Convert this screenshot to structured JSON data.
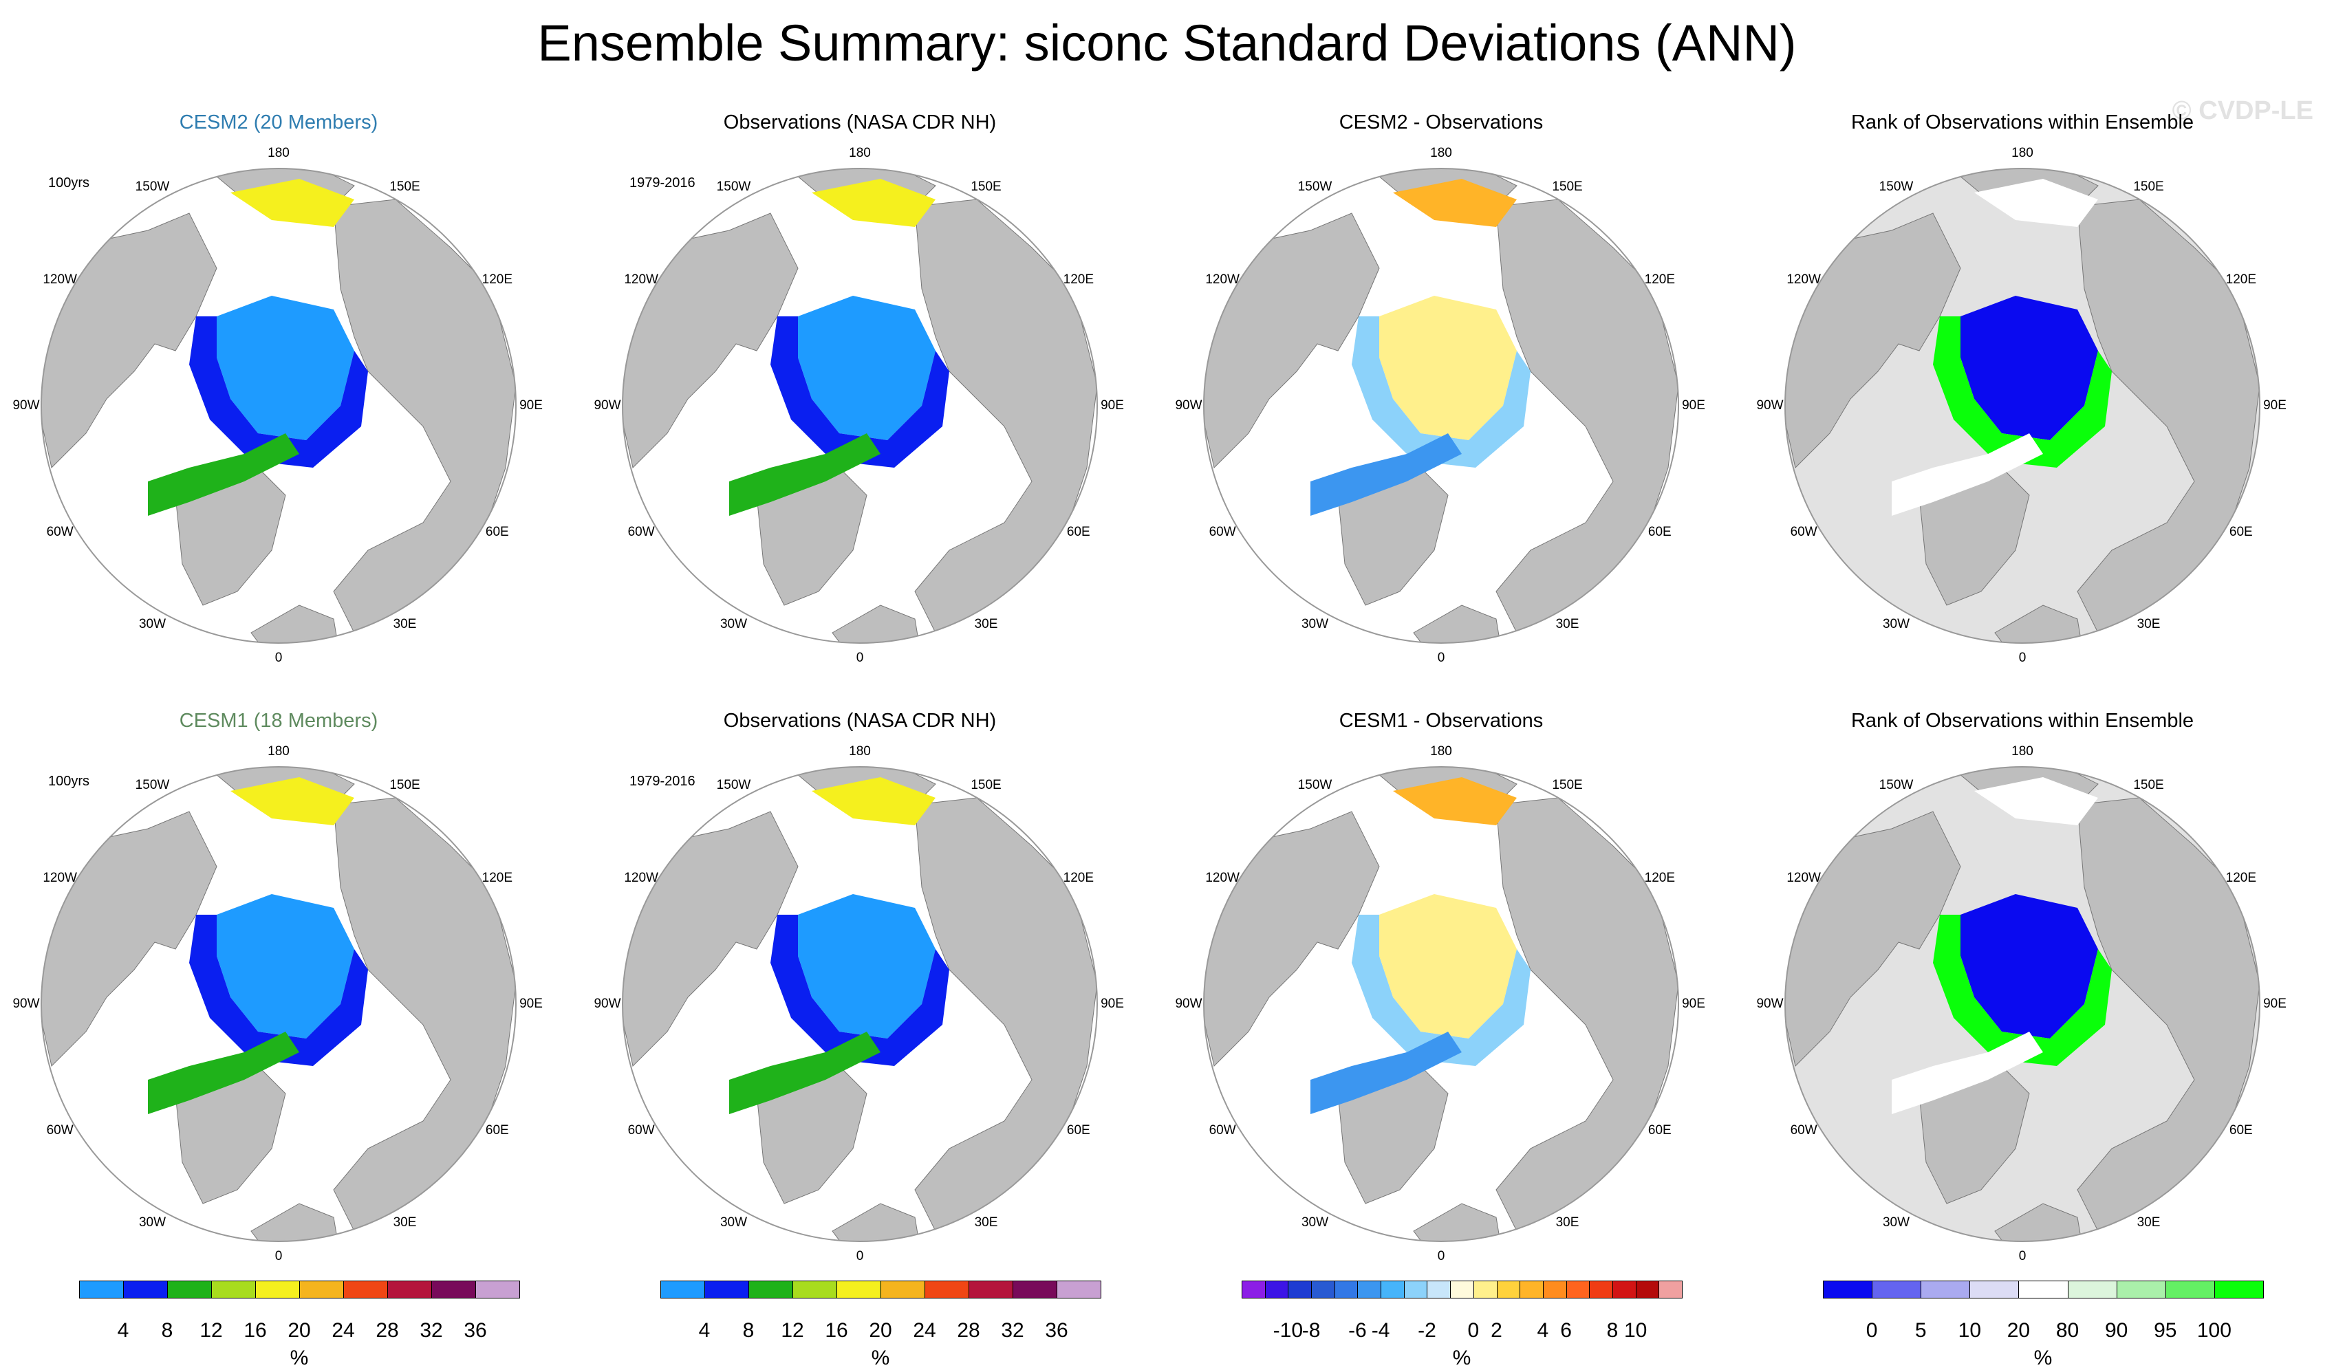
{
  "title": "Ensemble Summary: siconc Standard Deviations (ANN)",
  "watermark": "© CVDP-LE",
  "panels": [
    {
      "title": "CESM2 (20 Members)",
      "title_color": "#2f7db0",
      "period": "100yrs",
      "scheme": "std"
    },
    {
      "title": "Observations (NASA CDR NH)",
      "title_color": "#000000",
      "period": "1979-2016",
      "scheme": "std"
    },
    {
      "title": "CESM2 - Observations",
      "title_color": "#000000",
      "period": "",
      "scheme": "diff"
    },
    {
      "title": "Rank of Observations within Ensemble",
      "title_color": "#000000",
      "period": "",
      "scheme": "rank"
    },
    {
      "title": "CESM1 (18 Members)",
      "title_color": "#5e8a5e",
      "period": "100yrs",
      "scheme": "std"
    },
    {
      "title": "Observations (NASA CDR NH)",
      "title_color": "#000000",
      "period": "1979-2016",
      "scheme": "std"
    },
    {
      "title": "CESM1 - Observations",
      "title_color": "#000000",
      "period": "",
      "scheme": "diff"
    },
    {
      "title": "Rank of Observations within Ensemble",
      "title_color": "#000000",
      "period": "",
      "scheme": "rank"
    }
  ],
  "lon_labels": [
    "180",
    "150E",
    "120E",
    "90E",
    "60E",
    "30E",
    "0",
    "30W",
    "60W",
    "90W",
    "120W",
    "150W"
  ],
  "colorbars": [
    {
      "unit": "%",
      "colors": [
        "#1e9bff",
        "#0a1ff0",
        "#1fb21a",
        "#a8dc1e",
        "#f5f01e",
        "#f5b41e",
        "#f04614",
        "#b4143c",
        "#780a5a",
        "#c8a0d2"
      ],
      "ticks": [
        "4",
        "8",
        "12",
        "16",
        "20",
        "24",
        "28",
        "32",
        "36"
      ]
    },
    {
      "unit": "%",
      "colors": [
        "#1e9bff",
        "#0a1ff0",
        "#1fb21a",
        "#a8dc1e",
        "#f5f01e",
        "#f5b41e",
        "#f04614",
        "#b4143c",
        "#780a5a",
        "#c8a0d2"
      ],
      "ticks": [
        "4",
        "8",
        "12",
        "16",
        "20",
        "24",
        "28",
        "32",
        "36"
      ]
    },
    {
      "unit": "%",
      "colors": [
        "#8c1ee6",
        "#3c14e6",
        "#1e3cd2",
        "#285ad2",
        "#3278e6",
        "#3c96f0",
        "#46b4fa",
        "#8cd2fa",
        "#c8e6fa",
        "#fffadc",
        "#fff08c",
        "#ffd23c",
        "#ffb428",
        "#ff8c1e",
        "#ff641e",
        "#f03c14",
        "#d21414",
        "#b40a0a",
        "#f0a0a0"
      ],
      "ticks": [
        "-10",
        "-8",
        "-6",
        "-4",
        "-2",
        "0",
        "2",
        "4",
        "6",
        "8",
        "10"
      ]
    },
    {
      "unit": "%",
      "colors": [
        "#0a0af0",
        "#6464f0",
        "#aaaaf0",
        "#dcdcf5",
        "#ffffff",
        "#dcf5dc",
        "#aaf0aa",
        "#64f064",
        "#0aff0a"
      ],
      "ticks": [
        "0",
        "5",
        "10",
        "20",
        "80",
        "90",
        "95",
        "100"
      ]
    }
  ]
}
